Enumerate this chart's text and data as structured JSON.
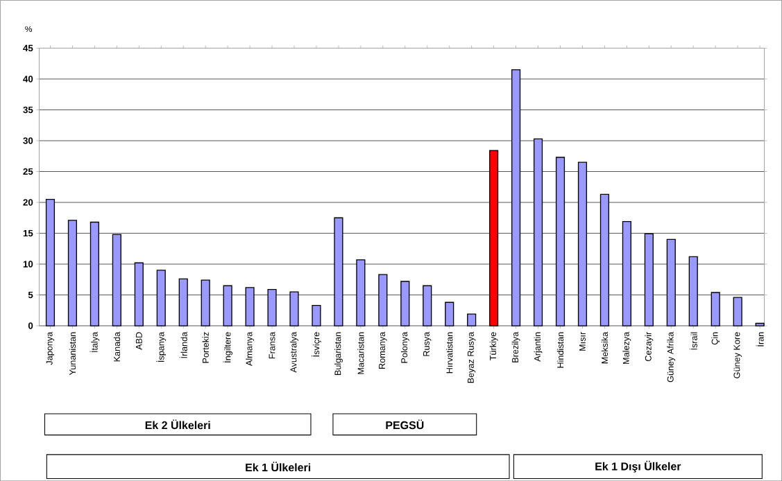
{
  "chart_data": {
    "type": "bar",
    "ylabel": "%",
    "categories": [
      "Japonya",
      "Yunanistan",
      "İtalya",
      "Kanada",
      "ABD",
      "İspanya",
      "İrlanda",
      "Portekiz",
      "İngiltere",
      "Almanya",
      "Fransa",
      "Avustralya",
      "İsviçre",
      "Bulgaristan",
      "Macaristan",
      "Romanya",
      "Polonya",
      "Rusya",
      "Hırvatistan",
      "Beyaz Rusya",
      "Türkiye",
      "Brezilya",
      "Arjantin",
      "Hindistan",
      "Mısır",
      "Meksika",
      "Malezya",
      "Cezayir",
      "Güney Afrika",
      "İsrail",
      "Çin",
      "Güney Kore",
      "İran"
    ],
    "values": [
      20.5,
      17.1,
      16.8,
      14.8,
      10.2,
      9.0,
      7.6,
      7.4,
      6.5,
      6.2,
      5.9,
      5.5,
      3.3,
      17.5,
      10.7,
      8.3,
      7.2,
      6.5,
      3.8,
      1.9,
      28.4,
      41.5,
      30.3,
      27.3,
      26.5,
      21.3,
      16.9,
      14.9,
      14.0,
      11.2,
      5.4,
      4.6,
      0.4
    ],
    "colors": [
      "#9999ff",
      "#9999ff",
      "#9999ff",
      "#9999ff",
      "#9999ff",
      "#9999ff",
      "#9999ff",
      "#9999ff",
      "#9999ff",
      "#9999ff",
      "#9999ff",
      "#9999ff",
      "#9999ff",
      "#9999ff",
      "#9999ff",
      "#9999ff",
      "#9999ff",
      "#9999ff",
      "#9999ff",
      "#9999ff",
      "#ff0000",
      "#9999ff",
      "#9999ff",
      "#9999ff",
      "#9999ff",
      "#9999ff",
      "#9999ff",
      "#9999ff",
      "#9999ff",
      "#9999ff",
      "#9999ff",
      "#9999ff",
      "#9999ff"
    ],
    "ylim": [
      0,
      45
    ],
    "yticks": [
      0,
      5,
      10,
      15,
      20,
      25,
      30,
      35,
      40,
      45
    ],
    "grid": "y",
    "annotations": [
      "Ek 2 Ülkeleri",
      "PEGSÜ",
      "Ek 1 Ülkeleri",
      "Ek 1 Dışı Ülkeler"
    ]
  }
}
